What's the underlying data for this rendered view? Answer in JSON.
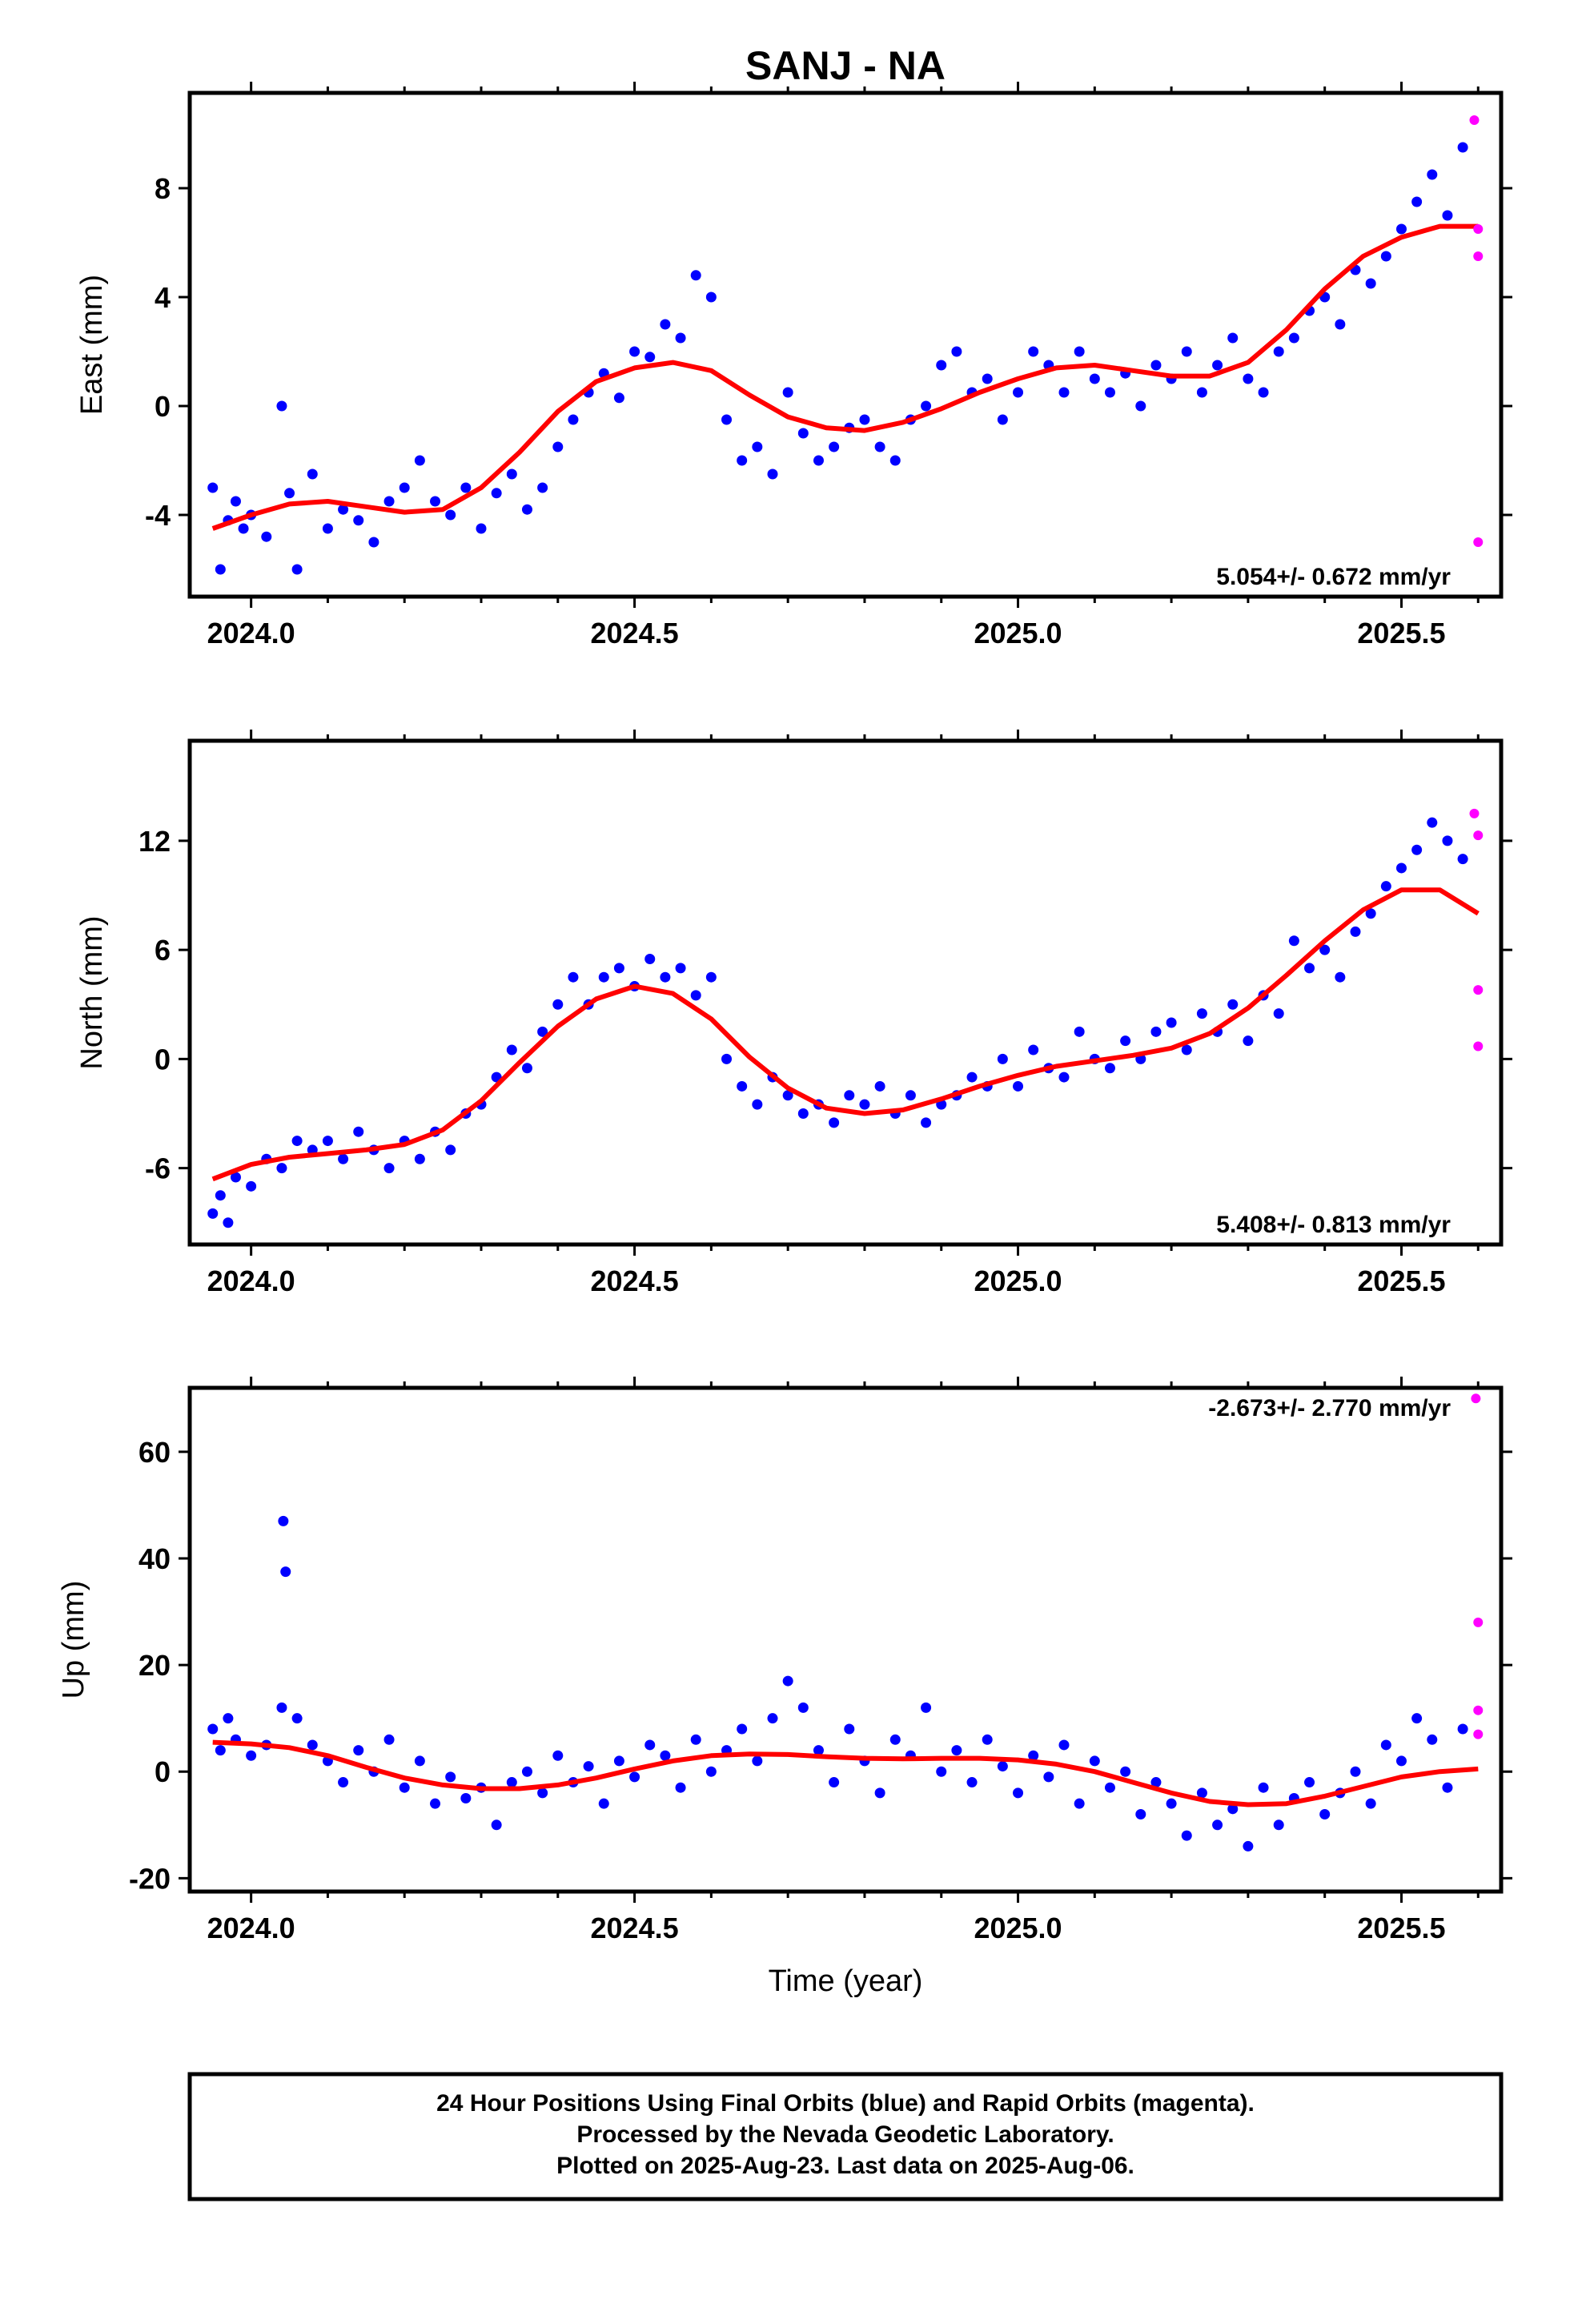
{
  "title": "SANJ - NA",
  "footer": {
    "lines": [
      "24 Hour Positions Using Final Orbits (blue) and Rapid Orbits (magenta).",
      "Processed by the Nevada Geodetic Laboratory.",
      "Plotted on 2025-Aug-23. Last data on 2025-Aug-06."
    ]
  },
  "colors": {
    "final": "#0000ff",
    "rapid": "#ff00ff",
    "fit": "#ff0000",
    "frame": "#000000"
  },
  "chart_data": [
    {
      "type": "scatter",
      "ylabel": "East (mm)",
      "xlabel": "",
      "rate_label": "5.054+/- 0.672 mm/yr",
      "rate_position": "bottom-right",
      "xlim": [
        2023.92,
        2025.63
      ],
      "ylim": [
        -7.0,
        11.5
      ],
      "xticks": [
        "2024.0",
        "2024.5",
        "2025.0",
        "2025.5"
      ],
      "yticks": [
        "-4",
        "0",
        "4",
        "8"
      ],
      "series": [
        {
          "name": "Final Orbits",
          "x": [
            2023.95,
            2023.96,
            2023.97,
            2023.98,
            2023.99,
            2024.0,
            2024.02,
            2024.04,
            2024.05,
            2024.06,
            2024.08,
            2024.1,
            2024.12,
            2024.14,
            2024.16,
            2024.18,
            2024.2,
            2024.22,
            2024.24,
            2024.26,
            2024.28,
            2024.3,
            2024.32,
            2024.34,
            2024.36,
            2024.38,
            2024.4,
            2024.42,
            2024.44,
            2024.46,
            2024.48,
            2024.5,
            2024.52,
            2024.54,
            2024.56,
            2024.58,
            2024.6,
            2024.62,
            2024.64,
            2024.66,
            2024.68,
            2024.7,
            2024.72,
            2024.74,
            2024.76,
            2024.78,
            2024.8,
            2024.82,
            2024.84,
            2024.86,
            2024.88,
            2024.9,
            2024.92,
            2024.94,
            2024.96,
            2024.98,
            2025.0,
            2025.02,
            2025.04,
            2025.06,
            2025.08,
            2025.1,
            2025.12,
            2025.14,
            2025.16,
            2025.18,
            2025.2,
            2025.22,
            2025.24,
            2025.26,
            2025.28,
            2025.3,
            2025.32,
            2025.34,
            2025.36,
            2025.38,
            2025.4,
            2025.42,
            2025.44,
            2025.46,
            2025.48,
            2025.5,
            2025.52,
            2025.54,
            2025.56,
            2025.58
          ],
          "y": [
            -3.0,
            -6.0,
            -4.2,
            -3.5,
            -4.5,
            -4.0,
            -4.8,
            0.0,
            -3.2,
            -6.0,
            -2.5,
            -4.5,
            -3.8,
            -4.2,
            -5.0,
            -3.5,
            -3.0,
            -2.0,
            -3.5,
            -4.0,
            -3.0,
            -4.5,
            -3.2,
            -2.5,
            -3.8,
            -3.0,
            -1.5,
            -0.5,
            0.5,
            1.2,
            0.3,
            2.0,
            1.8,
            3.0,
            2.5,
            4.8,
            4.0,
            -0.5,
            -2.0,
            -1.5,
            -2.5,
            0.5,
            -1.0,
            -2.0,
            -1.5,
            -0.8,
            -0.5,
            -1.5,
            -2.0,
            -0.5,
            0.0,
            1.5,
            2.0,
            0.5,
            1.0,
            -0.5,
            0.5,
            2.0,
            1.5,
            0.5,
            2.0,
            1.0,
            0.5,
            1.2,
            0.0,
            1.5,
            1.0,
            2.0,
            0.5,
            1.5,
            2.5,
            1.0,
            0.5,
            2.0,
            2.5,
            3.5,
            4.0,
            3.0,
            5.0,
            4.5,
            5.5,
            6.5,
            7.5,
            8.5,
            7.0,
            9.5
          ]
        },
        {
          "name": "Rapid Orbits",
          "x": [
            2025.595,
            2025.6,
            2025.6,
            2025.6
          ],
          "y": [
            10.5,
            6.5,
            5.5,
            -5.0
          ]
        },
        {
          "name": "Fit",
          "x": [
            2023.95,
            2024.0,
            2024.05,
            2024.1,
            2024.15,
            2024.2,
            2024.25,
            2024.3,
            2024.35,
            2024.4,
            2024.45,
            2024.5,
            2024.55,
            2024.6,
            2024.65,
            2024.7,
            2024.75,
            2024.8,
            2024.85,
            2024.9,
            2024.95,
            2025.0,
            2025.05,
            2025.1,
            2025.15,
            2025.2,
            2025.25,
            2025.3,
            2025.35,
            2025.4,
            2025.45,
            2025.5,
            2025.55,
            2025.6
          ],
          "y": [
            -4.5,
            -4.0,
            -3.6,
            -3.5,
            -3.7,
            -3.9,
            -3.8,
            -3.0,
            -1.7,
            -0.2,
            0.9,
            1.4,
            1.6,
            1.3,
            0.4,
            -0.4,
            -0.8,
            -0.9,
            -0.6,
            -0.1,
            0.5,
            1.0,
            1.4,
            1.5,
            1.3,
            1.1,
            1.1,
            1.6,
            2.8,
            4.3,
            5.5,
            6.2,
            6.6,
            6.6
          ]
        }
      ]
    },
    {
      "type": "scatter",
      "ylabel": "North (mm)",
      "xlabel": "",
      "rate_label": "5.408+/- 0.813 mm/yr",
      "rate_position": "bottom-right",
      "xlim": [
        2023.92,
        2025.63
      ],
      "ylim": [
        -10.2,
        17.5
      ],
      "xticks": [
        "2024.0",
        "2024.5",
        "2025.0",
        "2025.5"
      ],
      "yticks": [
        "-6",
        "0",
        "6",
        "12"
      ],
      "series": [
        {
          "name": "Final Orbits",
          "x": [
            2023.95,
            2023.96,
            2023.97,
            2023.98,
            2024.0,
            2024.02,
            2024.04,
            2024.06,
            2024.08,
            2024.1,
            2024.12,
            2024.14,
            2024.16,
            2024.18,
            2024.2,
            2024.22,
            2024.24,
            2024.26,
            2024.28,
            2024.3,
            2024.32,
            2024.34,
            2024.36,
            2024.38,
            2024.4,
            2024.42,
            2024.44,
            2024.46,
            2024.48,
            2024.5,
            2024.52,
            2024.54,
            2024.56,
            2024.58,
            2024.6,
            2024.62,
            2024.64,
            2024.66,
            2024.68,
            2024.7,
            2024.72,
            2024.74,
            2024.76,
            2024.78,
            2024.8,
            2024.82,
            2024.84,
            2024.86,
            2024.88,
            2024.9,
            2024.92,
            2024.94,
            2024.96,
            2024.98,
            2025.0,
            2025.02,
            2025.04,
            2025.06,
            2025.08,
            2025.1,
            2025.12,
            2025.14,
            2025.16,
            2025.18,
            2025.2,
            2025.22,
            2025.24,
            2025.26,
            2025.28,
            2025.3,
            2025.32,
            2025.34,
            2025.36,
            2025.38,
            2025.4,
            2025.42,
            2025.44,
            2025.46,
            2025.48,
            2025.5,
            2025.52,
            2025.54,
            2025.56,
            2025.58
          ],
          "y": [
            -8.5,
            -7.5,
            -9.0,
            -6.5,
            -7.0,
            -5.5,
            -6.0,
            -4.5,
            -5.0,
            -4.5,
            -5.5,
            -4.0,
            -5.0,
            -6.0,
            -4.5,
            -5.5,
            -4.0,
            -5.0,
            -3.0,
            -2.5,
            -1.0,
            0.5,
            -0.5,
            1.5,
            3.0,
            4.5,
            3.0,
            4.5,
            5.0,
            4.0,
            5.5,
            4.5,
            5.0,
            3.5,
            4.5,
            0.0,
            -1.5,
            -2.5,
            -1.0,
            -2.0,
            -3.0,
            -2.5,
            -3.5,
            -2.0,
            -2.5,
            -1.5,
            -3.0,
            -2.0,
            -3.5,
            -2.5,
            -2.0,
            -1.0,
            -1.5,
            0.0,
            -1.5,
            0.5,
            -0.5,
            -1.0,
            1.5,
            0.0,
            -0.5,
            1.0,
            0.0,
            1.5,
            2.0,
            0.5,
            2.5,
            1.5,
            3.0,
            1.0,
            3.5,
            2.5,
            6.5,
            5.0,
            6.0,
            4.5,
            7.0,
            8.0,
            9.5,
            10.5,
            11.5,
            13.0,
            12.0,
            11.0
          ]
        },
        {
          "name": "Rapid Orbits",
          "x": [
            2025.595,
            2025.6,
            2025.6,
            2025.6
          ],
          "y": [
            13.5,
            12.3,
            3.8,
            0.7
          ]
        },
        {
          "name": "Fit",
          "x": [
            2023.95,
            2024.0,
            2024.05,
            2024.1,
            2024.15,
            2024.2,
            2024.25,
            2024.3,
            2024.35,
            2024.4,
            2024.45,
            2024.5,
            2024.55,
            2024.6,
            2024.65,
            2024.7,
            2024.75,
            2024.8,
            2024.85,
            2024.9,
            2024.95,
            2025.0,
            2025.05,
            2025.1,
            2025.15,
            2025.2,
            2025.25,
            2025.3,
            2025.35,
            2025.4,
            2025.45,
            2025.5,
            2025.55,
            2025.6
          ],
          "y": [
            -6.6,
            -5.8,
            -5.4,
            -5.2,
            -5.0,
            -4.7,
            -3.9,
            -2.3,
            -0.2,
            1.8,
            3.3,
            4.0,
            3.6,
            2.2,
            0.1,
            -1.6,
            -2.7,
            -3.0,
            -2.8,
            -2.2,
            -1.5,
            -0.9,
            -0.4,
            -0.1,
            0.2,
            0.6,
            1.4,
            2.8,
            4.6,
            6.5,
            8.2,
            9.3,
            9.3,
            8.0
          ]
        }
      ]
    },
    {
      "type": "scatter",
      "ylabel": "Up (mm)",
      "xlabel": "Time (year)",
      "rate_label": "-2.673+/- 2.770 mm/yr",
      "rate_position": "top-right",
      "xlim": [
        2023.92,
        2025.63
      ],
      "ylim": [
        -22.5,
        72.0
      ],
      "xticks": [
        "2024.0",
        "2024.5",
        "2025.0",
        "2025.5"
      ],
      "yticks": [
        "-20",
        "0",
        "20",
        "40",
        "60"
      ],
      "series": [
        {
          "name": "Final Orbits",
          "x": [
            2023.95,
            2023.96,
            2023.97,
            2023.98,
            2024.0,
            2024.02,
            2024.04,
            2024.042,
            2024.045,
            2024.06,
            2024.08,
            2024.1,
            2024.12,
            2024.14,
            2024.16,
            2024.18,
            2024.2,
            2024.22,
            2024.24,
            2024.26,
            2024.28,
            2024.3,
            2024.32,
            2024.34,
            2024.36,
            2024.38,
            2024.4,
            2024.42,
            2024.44,
            2024.46,
            2024.48,
            2024.5,
            2024.52,
            2024.54,
            2024.56,
            2024.58,
            2024.6,
            2024.62,
            2024.64,
            2024.66,
            2024.68,
            2024.7,
            2024.72,
            2024.74,
            2024.76,
            2024.78,
            2024.8,
            2024.82,
            2024.84,
            2024.86,
            2024.88,
            2024.9,
            2024.92,
            2024.94,
            2024.96,
            2024.98,
            2025.0,
            2025.02,
            2025.04,
            2025.06,
            2025.08,
            2025.1,
            2025.12,
            2025.14,
            2025.16,
            2025.18,
            2025.2,
            2025.22,
            2025.24,
            2025.26,
            2025.28,
            2025.3,
            2025.32,
            2025.34,
            2025.36,
            2025.38,
            2025.4,
            2025.42,
            2025.44,
            2025.46,
            2025.48,
            2025.5,
            2025.52,
            2025.54,
            2025.56,
            2025.58
          ],
          "y": [
            8,
            4,
            10,
            6,
            3,
            5,
            12,
            47,
            37.5,
            10,
            5,
            2,
            -2,
            4,
            0,
            6,
            -3,
            2,
            -6,
            -1,
            -5,
            -3,
            -10,
            -2,
            0,
            -4,
            3,
            -2,
            1,
            -6,
            2,
            -1,
            5,
            3,
            -3,
            6,
            0,
            4,
            8,
            2,
            10,
            17,
            12,
            4,
            -2,
            8,
            2,
            -4,
            6,
            3,
            12,
            0,
            4,
            -2,
            6,
            1,
            -4,
            3,
            -1,
            5,
            -6,
            2,
            -3,
            0,
            -8,
            -2,
            -6,
            -12,
            -4,
            -10,
            -7,
            -14,
            -3,
            -10,
            -5,
            -2,
            -8,
            -4,
            0,
            -6,
            5,
            2,
            10,
            6,
            -3,
            8
          ]
        },
        {
          "name": "Rapid Orbits",
          "x": [
            2025.597,
            2025.6,
            2025.6,
            2025.6
          ],
          "y": [
            70,
            28,
            11.5,
            7
          ]
        },
        {
          "name": "Fit",
          "x": [
            2023.95,
            2024.0,
            2024.05,
            2024.1,
            2024.15,
            2024.2,
            2024.25,
            2024.3,
            2024.35,
            2024.4,
            2024.45,
            2024.5,
            2024.55,
            2024.6,
            2024.65,
            2024.7,
            2024.75,
            2024.8,
            2024.85,
            2024.9,
            2024.95,
            2025.0,
            2025.05,
            2025.1,
            2025.15,
            2025.2,
            2025.25,
            2025.3,
            2025.35,
            2025.4,
            2025.45,
            2025.5,
            2025.55,
            2025.6
          ],
          "y": [
            5.5,
            5.2,
            4.5,
            3.0,
            0.8,
            -1.2,
            -2.5,
            -3.2,
            -3.2,
            -2.5,
            -1.2,
            0.5,
            2.0,
            3.0,
            3.3,
            3.2,
            2.8,
            2.5,
            2.4,
            2.5,
            2.5,
            2.2,
            1.4,
            0.0,
            -2.0,
            -4.0,
            -5.6,
            -6.2,
            -6.0,
            -4.6,
            -2.8,
            -1.0,
            0.0,
            0.5
          ]
        }
      ]
    }
  ]
}
